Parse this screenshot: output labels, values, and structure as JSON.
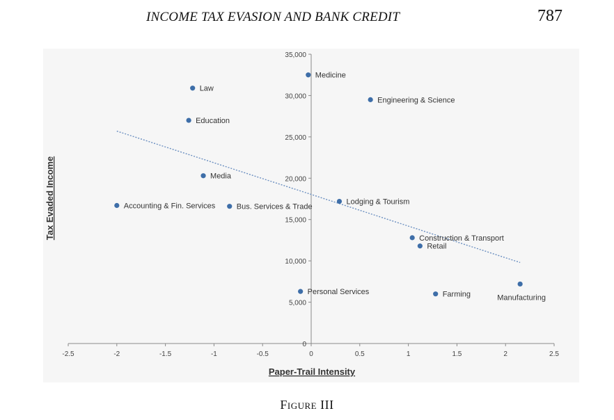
{
  "header": {
    "running_title": "INCOME TAX EVASION AND BANK CREDIT",
    "page_number": "787"
  },
  "figure": {
    "caption": "Figure III"
  },
  "chart_data": {
    "type": "scatter",
    "xlabel": "Paper-Trail Intensity",
    "ylabel": "Tax Evaded Income",
    "xlim": [
      -2.5,
      2.5
    ],
    "ylim": [
      0,
      35000
    ],
    "xticks": [
      -2.5,
      -2,
      -1.5,
      -1,
      -0.5,
      0,
      0.5,
      1,
      1.5,
      2,
      2.5
    ],
    "x_tick_labels": [
      "-2.5",
      "-2",
      "-1.5",
      "-1",
      "-0.5",
      "0",
      "0.5",
      "1",
      "1.5",
      "2",
      "2.5"
    ],
    "yticks": [
      0,
      5000,
      10000,
      15000,
      20000,
      25000,
      30000,
      35000
    ],
    "y_tick_labels": [
      "0",
      "5,000",
      "10,000",
      "15,000",
      "20,000",
      "25,000",
      "30,000",
      "35,000"
    ],
    "grid": false,
    "point_color": "#3e6ea8",
    "trendline_color": "#6b8fc0",
    "points": [
      {
        "label": "Medicine",
        "x": -0.03,
        "y": 32500
      },
      {
        "label": "Law",
        "x": -1.22,
        "y": 30900
      },
      {
        "label": "Engineering & Science",
        "x": 0.61,
        "y": 29500
      },
      {
        "label": "Education",
        "x": -1.26,
        "y": 27000
      },
      {
        "label": "Media",
        "x": -1.11,
        "y": 20300
      },
      {
        "label": "Accounting & Fin. Services",
        "x": -2.0,
        "y": 16700
      },
      {
        "label": "Bus. Services & Trade",
        "x": -0.84,
        "y": 16600
      },
      {
        "label": "Lodging & Tourism",
        "x": 0.29,
        "y": 17200
      },
      {
        "label": "Construction & Transport",
        "x": 1.04,
        "y": 12800
      },
      {
        "label": "Retail",
        "x": 1.12,
        "y": 11800
      },
      {
        "label": "Personal Services",
        "x": -0.11,
        "y": 6300
      },
      {
        "label": "Farming",
        "x": 1.28,
        "y": 6000
      },
      {
        "label": "Manufacturing",
        "x": 2.15,
        "y": 7200
      }
    ],
    "trendline": {
      "x": [
        -2.0,
        2.15
      ],
      "y": [
        25700,
        9800
      ]
    }
  }
}
